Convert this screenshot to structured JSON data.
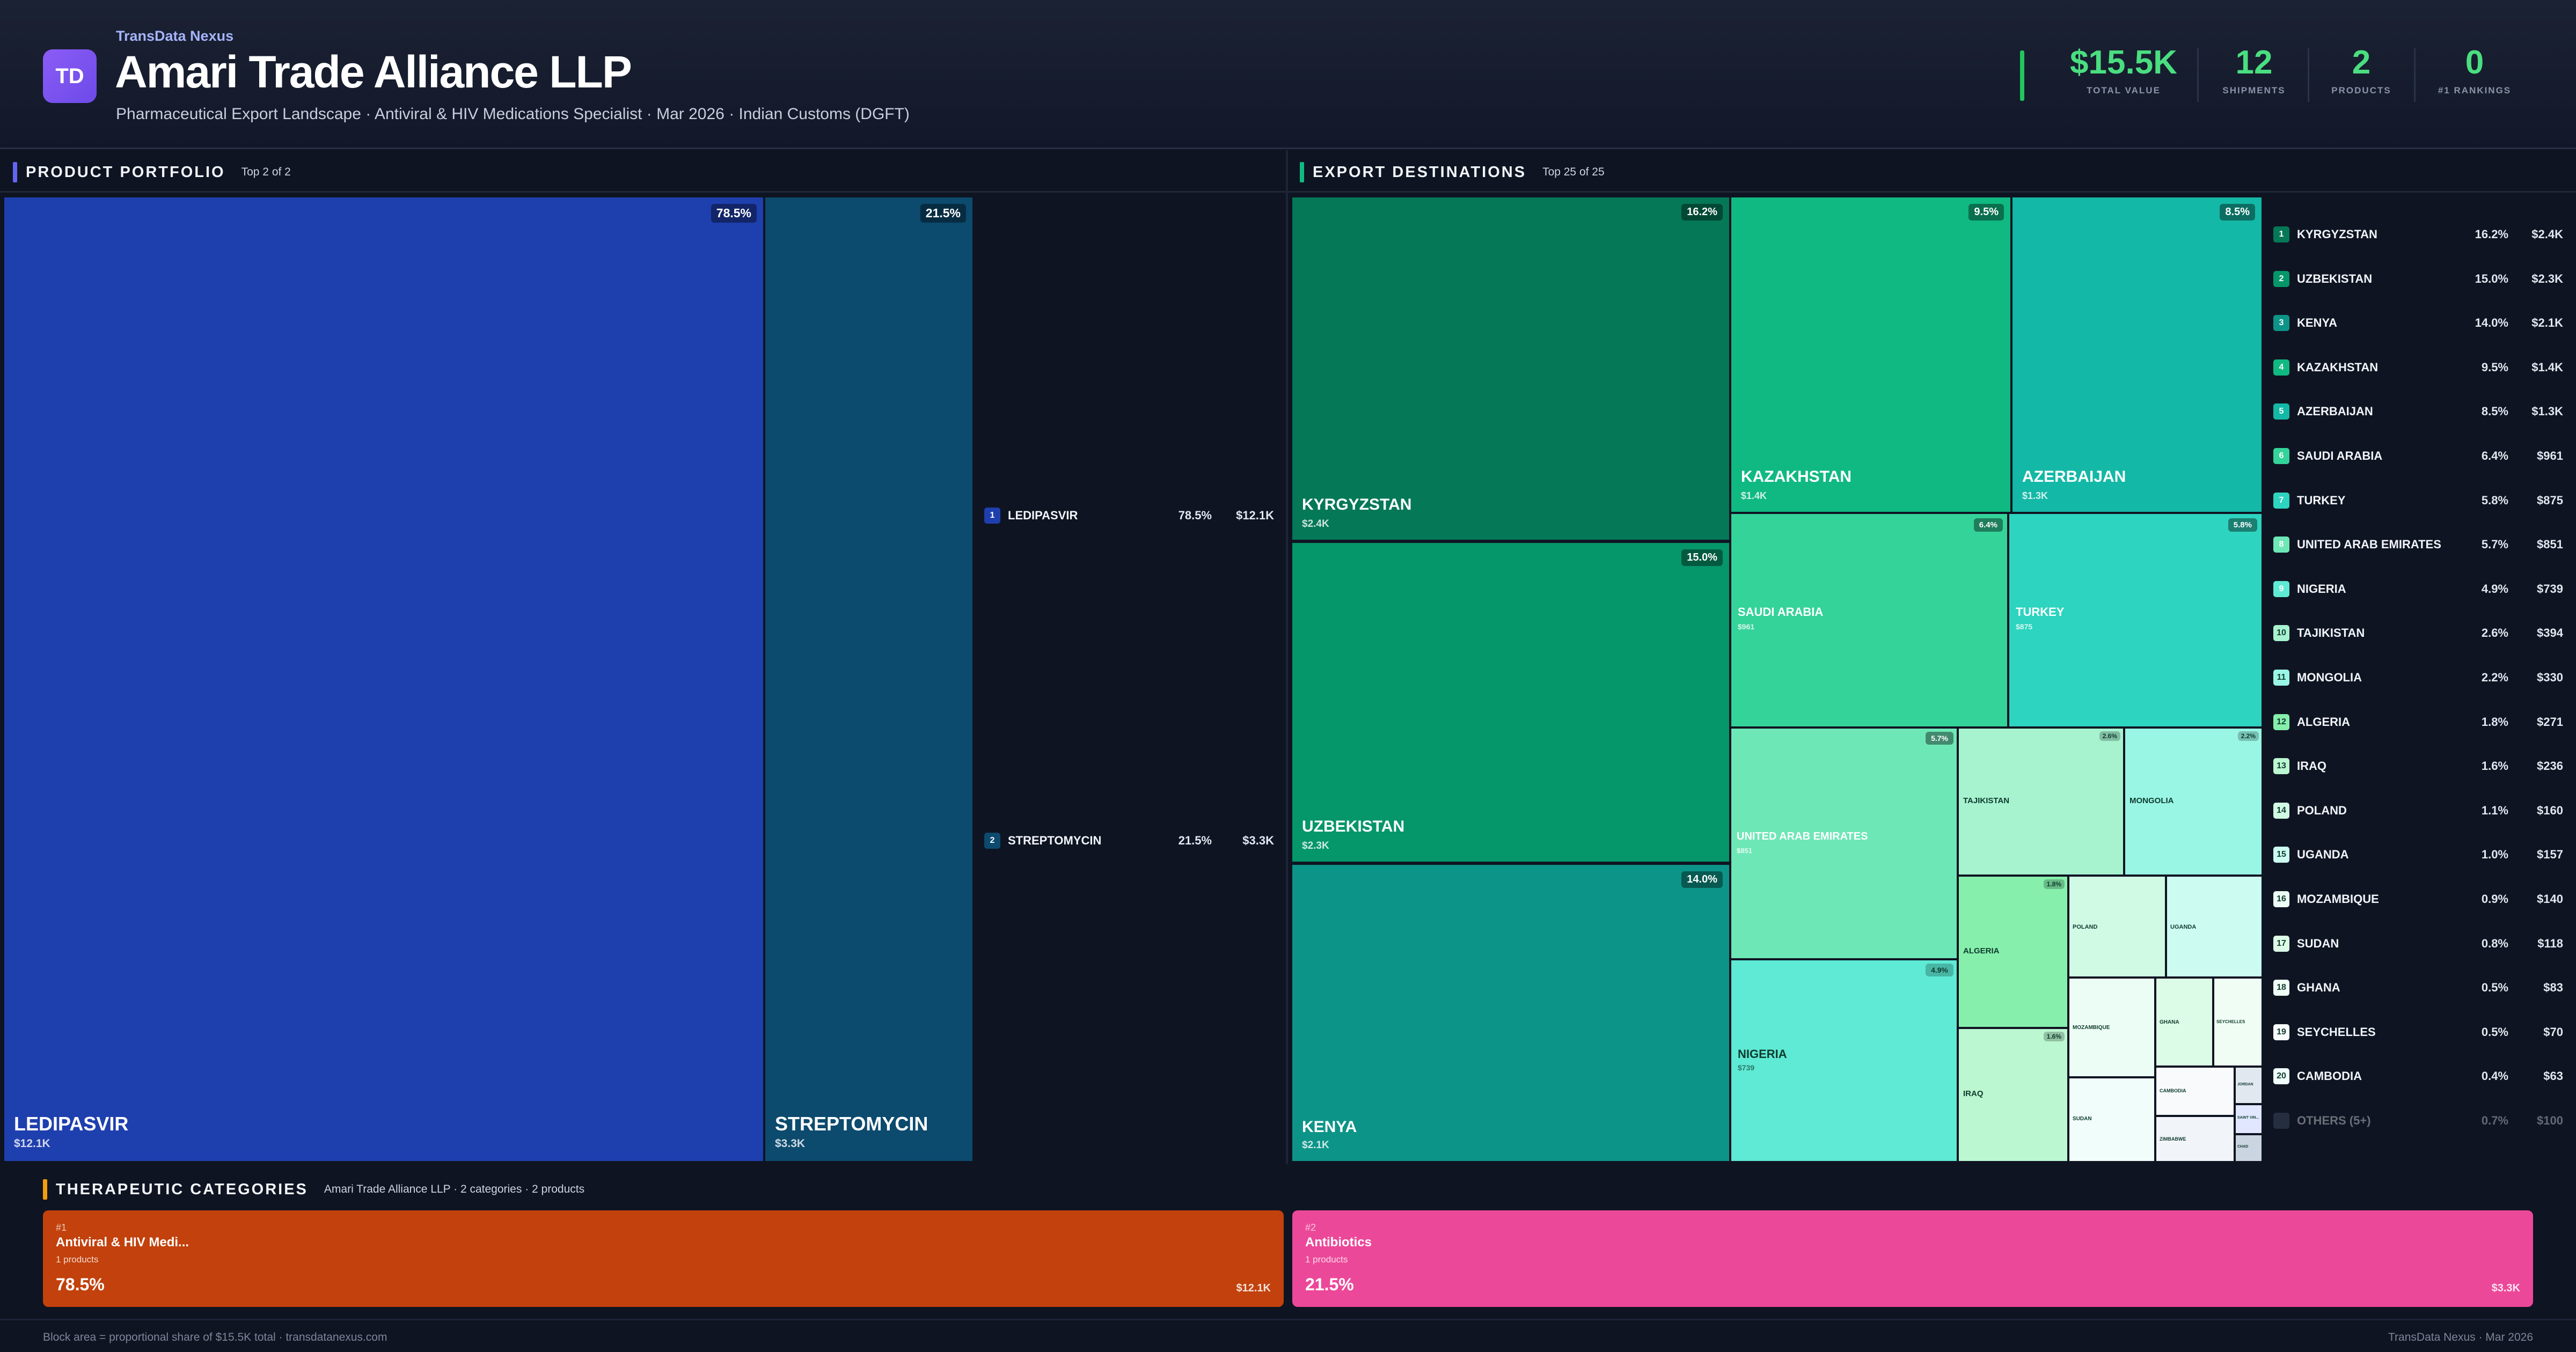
{
  "header": {
    "brand": "TransData Nexus",
    "logo_text": "TD",
    "company": "Amari Trade Alliance LLP",
    "subtitle": "Pharmaceutical Export Landscape · Antiviral & HIV Medications Specialist · Mar 2026 · Indian Customs (DGFT)",
    "stats": [
      {
        "value": "$15.5K",
        "label": "TOTAL VALUE"
      },
      {
        "value": "12",
        "label": "SHIPMENTS"
      },
      {
        "value": "2",
        "label": "PRODUCTS"
      },
      {
        "value": "0",
        "label": "#1 RANKINGS"
      }
    ],
    "accent_color": "#4ade80"
  },
  "portfolio": {
    "title": "PRODUCT PORTFOLIO",
    "subtitle": "Top 2 of 2",
    "accent_color": "#6366f1",
    "tiles": [
      {
        "name": "LEDIPASVIR",
        "value": "$12.1K",
        "pct": "78.5%",
        "color": "#1e3fae"
      },
      {
        "name": "STREPTOMYCIN",
        "value": "$3.3K",
        "pct": "21.5%",
        "color": "#0c4a6e"
      }
    ],
    "legend": [
      {
        "rank": "1",
        "name": "LEDIPASVIR",
        "pct": "78.5%",
        "value": "$12.1K",
        "color": "#1e3fae"
      },
      {
        "rank": "2",
        "name": "STREPTOMYCIN",
        "pct": "21.5%",
        "value": "$3.3K",
        "color": "#0c4a6e"
      }
    ]
  },
  "destinations": {
    "title": "EXPORT DESTINATIONS",
    "subtitle": "Top 25 of 25",
    "accent_color": "#10b981",
    "tiles": [
      {
        "name": "KYRGYZSTAN",
        "value": "$2.4K",
        "pct": "16.2%"
      },
      {
        "name": "UZBEKISTAN",
        "value": "$2.3K",
        "pct": "15.0%"
      },
      {
        "name": "KENYA",
        "value": "$2.1K",
        "pct": "14.0%"
      },
      {
        "name": "KAZAKHSTAN",
        "value": "$1.4K",
        "pct": "9.5%"
      },
      {
        "name": "AZERBAIJAN",
        "value": "$1.3K",
        "pct": "8.5%"
      },
      {
        "name": "SAUDI ARABIA",
        "value": "$961",
        "pct": "6.4%"
      },
      {
        "name": "TURKEY",
        "value": "$875",
        "pct": "5.8%"
      },
      {
        "name": "UNITED ARAB EMIRATES",
        "value": "$851",
        "pct": "5.7%"
      },
      {
        "name": "NIGERIA",
        "value": "$739",
        "pct": "4.9%"
      },
      {
        "name": "TAJIKISTAN",
        "value": "",
        "pct": "2.6%"
      },
      {
        "name": "MONGOLIA",
        "value": "",
        "pct": "2.2%"
      },
      {
        "name": "ALGERIA",
        "value": "",
        "pct": "1.8%"
      },
      {
        "name": "IRAQ",
        "value": "",
        "pct": "1.6%"
      },
      {
        "name": "POLAND",
        "value": "",
        "pct": ""
      },
      {
        "name": "UGANDA",
        "value": "",
        "pct": ""
      },
      {
        "name": "MOZAMBIQUE",
        "value": "",
        "pct": ""
      },
      {
        "name": "GHANA",
        "value": "",
        "pct": ""
      },
      {
        "name": "SEYCHELLES",
        "value": "",
        "pct": ""
      },
      {
        "name": "CAMBODIA",
        "value": "",
        "pct": ""
      },
      {
        "name": "SUDAN",
        "value": "",
        "pct": ""
      },
      {
        "name": "ZIMBABWE",
        "value": "",
        "pct": ""
      },
      {
        "name": "JORDAN",
        "value": "",
        "pct": ""
      },
      {
        "name": "SAINT VIN...",
        "value": "",
        "pct": ""
      },
      {
        "name": "CHAD",
        "value": "",
        "pct": ""
      }
    ],
    "legend": [
      {
        "rank": "1",
        "name": "KYRGYZSTAN",
        "pct": "16.2%",
        "value": "$2.4K"
      },
      {
        "rank": "2",
        "name": "UZBEKISTAN",
        "pct": "15.0%",
        "value": "$2.3K"
      },
      {
        "rank": "3",
        "name": "KENYA",
        "pct": "14.0%",
        "value": "$2.1K"
      },
      {
        "rank": "4",
        "name": "KAZAKHSTAN",
        "pct": "9.5%",
        "value": "$1.4K"
      },
      {
        "rank": "5",
        "name": "AZERBAIJAN",
        "pct": "8.5%",
        "value": "$1.3K"
      },
      {
        "rank": "6",
        "name": "SAUDI ARABIA",
        "pct": "6.4%",
        "value": "$961"
      },
      {
        "rank": "7",
        "name": "TURKEY",
        "pct": "5.8%",
        "value": "$875"
      },
      {
        "rank": "8",
        "name": "UNITED ARAB EMIRATES",
        "pct": "5.7%",
        "value": "$851"
      },
      {
        "rank": "9",
        "name": "NIGERIA",
        "pct": "4.9%",
        "value": "$739"
      },
      {
        "rank": "10",
        "name": "TAJIKISTAN",
        "pct": "2.6%",
        "value": "$394"
      },
      {
        "rank": "11",
        "name": "MONGOLIA",
        "pct": "2.2%",
        "value": "$330"
      },
      {
        "rank": "12",
        "name": "ALGERIA",
        "pct": "1.8%",
        "value": "$271"
      },
      {
        "rank": "13",
        "name": "IRAQ",
        "pct": "1.6%",
        "value": "$236"
      },
      {
        "rank": "14",
        "name": "POLAND",
        "pct": "1.1%",
        "value": "$160"
      },
      {
        "rank": "15",
        "name": "UGANDA",
        "pct": "1.0%",
        "value": "$157"
      },
      {
        "rank": "16",
        "name": "MOZAMBIQUE",
        "pct": "0.9%",
        "value": "$140"
      },
      {
        "rank": "17",
        "name": "SUDAN",
        "pct": "0.8%",
        "value": "$118"
      },
      {
        "rank": "18",
        "name": "GHANA",
        "pct": "0.5%",
        "value": "$83"
      },
      {
        "rank": "19",
        "name": "SEYCHELLES",
        "pct": "0.5%",
        "value": "$70"
      },
      {
        "rank": "20",
        "name": "CAMBODIA",
        "pct": "0.4%",
        "value": "$63"
      },
      {
        "rank": "",
        "name": "OTHERS (5+)",
        "pct": "0.7%",
        "value": "$100"
      }
    ]
  },
  "categories": {
    "title": "THERAPEUTIC CATEGORIES",
    "subtitle": "Amari Trade Alliance LLP · 2 categories · 2 products",
    "accent_color": "#f59e0b",
    "cards": [
      {
        "rank": "#1",
        "name": "Antiviral & HIV Medi...",
        "count": "1 products",
        "pct": "78.5%",
        "value": "$12.1K",
        "color": "#c2410c"
      },
      {
        "rank": "#2",
        "name": "Antibiotics",
        "count": "1 products",
        "pct": "21.5%",
        "value": "$3.3K",
        "color": "#ec4899"
      }
    ]
  },
  "footer": {
    "left": "Block area = proportional share of $15.5K total · transdatanexus.com",
    "right": "TransData Nexus · Mar 2026"
  }
}
